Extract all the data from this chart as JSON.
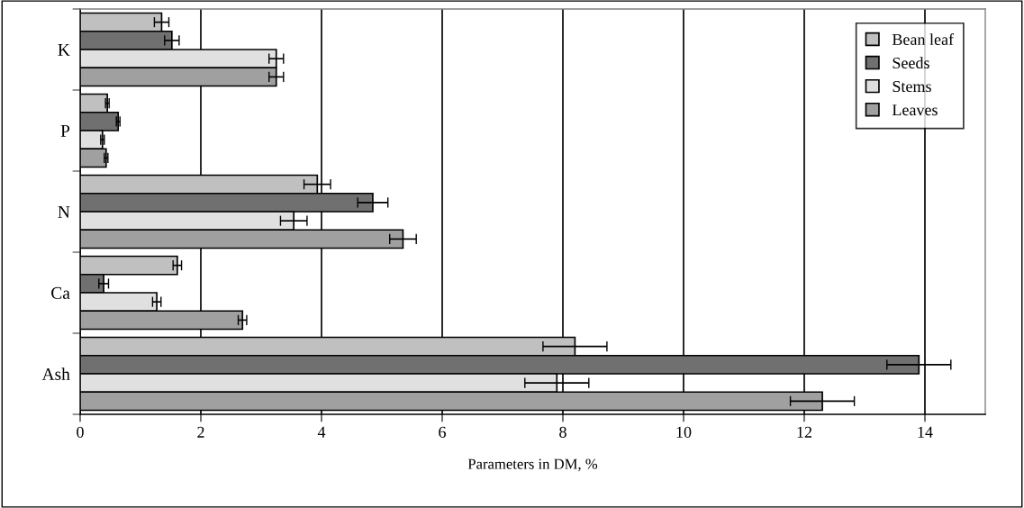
{
  "chart_data": {
    "type": "bar",
    "orientation": "horizontal",
    "xlabel": "Parameters in DM, %",
    "categories": [
      "K",
      "P",
      "N",
      "Ca",
      "Ash"
    ],
    "series": [
      {
        "name": "Bean leaf",
        "color": "#c0c0c0",
        "values": [
          1.35,
          0.45,
          3.93,
          1.61,
          8.2
        ],
        "errors": [
          0.12,
          0.03,
          0.22,
          0.07,
          0.53
        ]
      },
      {
        "name": "Seeds",
        "color": "#707070",
        "values": [
          1.52,
          0.63,
          4.85,
          0.39,
          13.9
        ],
        "errors": [
          0.12,
          0.03,
          0.25,
          0.08,
          0.53
        ]
      },
      {
        "name": "Stems",
        "color": "#e0e0e0",
        "values": [
          3.25,
          0.37,
          3.54,
          1.27,
          7.9
        ],
        "errors": [
          0.12,
          0.03,
          0.22,
          0.07,
          0.53
        ]
      },
      {
        "name": "Leaves",
        "color": "#a0a0a0",
        "values": [
          3.25,
          0.43,
          5.35,
          2.69,
          12.3
        ],
        "errors": [
          0.12,
          0.03,
          0.22,
          0.07,
          0.53
        ]
      }
    ],
    "xlim": [
      0,
      15
    ],
    "xticks": [
      0,
      2,
      4,
      6,
      8,
      10,
      12,
      14
    ],
    "grid": "x",
    "legend": "top right"
  }
}
